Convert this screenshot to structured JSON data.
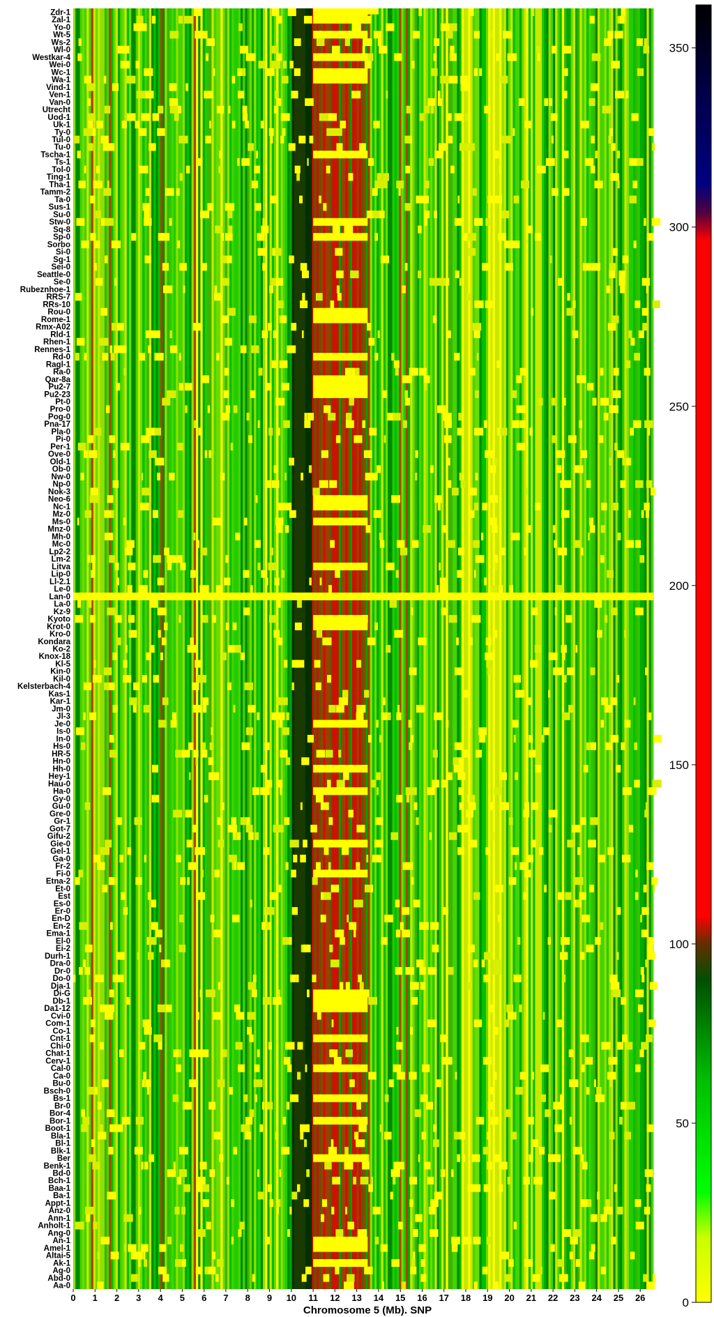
{
  "chart_data": {
    "type": "heatmap",
    "title": "",
    "xlabel": "Chromosome 5 (Mb). SNP",
    "ylabel": "",
    "x_range_mb": [
      0,
      26.6
    ],
    "x_ticks": [
      "0",
      "1",
      "2",
      "3",
      "4",
      "5",
      "6",
      "7",
      "8",
      "9",
      "10",
      "11",
      "12",
      "13",
      "14",
      "15",
      "16",
      "17",
      "18",
      "19",
      "20",
      "21",
      "22",
      "23",
      "24",
      "25",
      "26"
    ],
    "rows": [
      "Zdr-1",
      "Zal-1",
      "Yo-0",
      "Wt-5",
      "Ws-2",
      "Wl-0",
      "Westkar-4",
      "Wei-0",
      "Wc-1",
      "Wa-1",
      "Vind-1",
      "Ven-1",
      "Van-0",
      "Utrecht",
      "Uod-1",
      "Uk-1",
      "Ty-0",
      "Tul-0",
      "Tu-0",
      "Tscha-1",
      "Ts-1",
      "Tol-0",
      "Ting-1",
      "Tha-1",
      "Tamm-2",
      "Ta-0",
      "Sus-1",
      "Su-0",
      "Stw-0",
      "Sq-8",
      "Sp-0",
      "Sorbo",
      "Si-0",
      "Sg-1",
      "Sei-0",
      "Seattle-0",
      "Se-0",
      "Rubeznhoe-1",
      "RRS-7",
      "RRs-10",
      "Rou-0",
      "Rome-1",
      "Rmx-A02",
      "Rld-1",
      "Rhen-1",
      "Rennes-1",
      "Rd-0",
      "Ragl-1",
      "Ra-0",
      "Qar-8a",
      "Pu2-7",
      "Pu2-23",
      "Pt-0",
      "Pro-0",
      "Pog-0",
      "Pna-17",
      "Pla-0",
      "Pi-0",
      "Per-1",
      "Ove-0",
      "Old-1",
      "Ob-0",
      "Nw-0",
      "Np-0",
      "Nok-3",
      "Neo-6",
      "Nc-1",
      "Mz-0",
      "Ms-0",
      "Mnz-0",
      "Mh-0",
      "Mc-0",
      "Lp2-2",
      "Lm-2",
      "Litva",
      "Lip-0",
      "Ll-2.1",
      "Le-0",
      "Lan-0",
      "La-0",
      "Kz-9",
      "Kyoto",
      "Krot-0",
      "Kro-0",
      "Kondara",
      "Ko-2",
      "Knox-18",
      "Kl-5",
      "Kin-0",
      "Kil-0",
      "Kelsterbach-4",
      "Kas-1",
      "Kar-1",
      "Jm-0",
      "Jl-3",
      "Je-0",
      "Is-0",
      "In-0",
      "Hs-0",
      "HR-5",
      "Hn-0",
      "Hh-0",
      "Hey-1",
      "Hau-0",
      "Ha-0",
      "Gy-0",
      "Gu-0",
      "Gre-0",
      "Gr-1",
      "Got-7",
      "Gifu-2",
      "Gie-0",
      "Gel-1",
      "Ga-0",
      "Fr-2",
      "Fi-0",
      "Etna-2",
      "Et-0",
      "Est",
      "Es-0",
      "Er-0",
      "En-D",
      "En-2",
      "Ema-1",
      "El-0",
      "Ei-2",
      "Durh-1",
      "Dra-0",
      "Dr-0",
      "Do-0",
      "Dja-1",
      "Di-G",
      "Db-1",
      "Da1-12",
      "Cvi-0",
      "Com-1",
      "Co-1",
      "Cnt-1",
      "Chi-0",
      "Chat-1",
      "Cerv-1",
      "Cal-0",
      "Ca-0",
      "Bu-0",
      "Bsch-0",
      "Bs-1",
      "Br-0",
      "Bor-4",
      "Bor-1",
      "Boot-1",
      "Bla-1",
      "Bl-1",
      "Blk-1",
      "Ber",
      "Benk-1",
      "Bd-0",
      "Bch-1",
      "Baa-1",
      "Ba-1",
      "Appt-1",
      "Anz-0",
      "Ann-1",
      "Anholt-1",
      "Ang-0",
      "An-1",
      "Amel-1",
      "Altai-5",
      "Ak-1",
      "Ag-0",
      "Abd-0",
      "Aa-0"
    ],
    "color_scale": {
      "range": [
        0,
        362
      ],
      "ticks": [
        "0",
        "50",
        "100",
        "150",
        "200",
        "250",
        "300",
        "350"
      ],
      "stops": [
        {
          "value": 0,
          "color": "#ffff00"
        },
        {
          "value": 18,
          "color": "#c8ff00"
        },
        {
          "value": 30,
          "color": "#00ff00"
        },
        {
          "value": 60,
          "color": "#00c000"
        },
        {
          "value": 90,
          "color": "#005000"
        },
        {
          "value": 100,
          "color": "#603000"
        },
        {
          "value": 108,
          "color": "#ff0000"
        },
        {
          "value": 296,
          "color": "#ff0000"
        },
        {
          "value": 304,
          "color": "#500040"
        },
        {
          "value": 312,
          "color": "#000080"
        },
        {
          "value": 335,
          "color": "#000050"
        },
        {
          "value": 362,
          "color": "#000000"
        }
      ]
    },
    "legend": "colorbar right"
  }
}
